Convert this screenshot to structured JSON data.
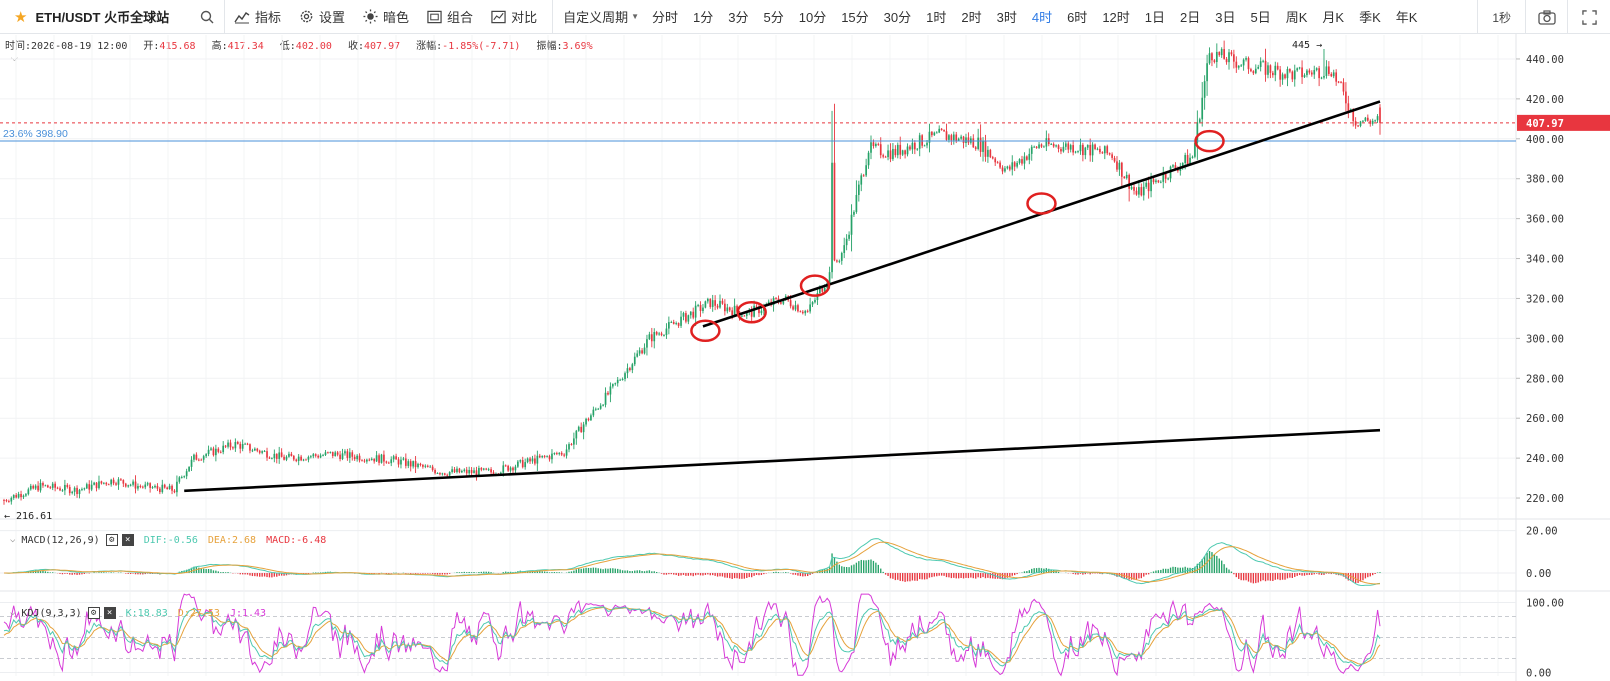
{
  "toolbar": {
    "symbol": "ETH/USDT 火币全球站",
    "tools": [
      "指标",
      "设置",
      "暗色",
      "组合",
      "对比"
    ],
    "custom_period": "自定义周期",
    "periods": [
      "分时",
      "1分",
      "3分",
      "5分",
      "10分",
      "15分",
      "30分",
      "1时",
      "2时",
      "3时",
      "4时",
      "6时",
      "12时",
      "1日",
      "2日",
      "3日",
      "5日",
      "周K",
      "月K",
      "季K",
      "年K"
    ],
    "active_period": "4时",
    "seconds": "1秒"
  },
  "ohlc": {
    "time_label": "时间:",
    "time": "2020-08-19 12:00",
    "open_label": "开:",
    "open": "415.68",
    "high_label": "高:",
    "high": "417.34",
    "low_label": "低:",
    "low": "402.00",
    "close_label": "收:",
    "close": "407.97",
    "change_label": "涨幅:",
    "change": "-1.85%(-7.71)",
    "amp_label": "振幅:",
    "amp": "3.69%"
  },
  "macd_legend": {
    "name": "MACD(12,26,9)",
    "dif": "DIF:-0.56",
    "dea": "DEA:2.68",
    "macd": "MACD:-6.48"
  },
  "kdj_legend": {
    "name": "KDJ(9,3,3)",
    "k": "K:18.83",
    "d": "D:27.53",
    "j": "J:1.43"
  },
  "colors": {
    "up": "#26a268",
    "down": "#e8363f",
    "fib_line": "#4a90d9",
    "last_price": "#e8363f",
    "trendline": "#000000",
    "circle": "#e02020",
    "dif": "#4ec9b0",
    "dea": "#e6a23c",
    "k_line": "#4ec9b0",
    "d_line": "#e6a23c",
    "j_line": "#d63ad8",
    "active": "#2f7be5"
  },
  "chart_data": [
    {
      "type": "candlestick",
      "title": "ETH/USDT 4时",
      "y_ticks": [
        "440.00",
        "420.00",
        "400.00",
        "380.00",
        "360.00",
        "340.00",
        "320.00",
        "300.00",
        "280.00",
        "260.00",
        "240.00",
        "220.00"
      ],
      "ylim": [
        210,
        452
      ],
      "last_price": 407.97,
      "last_price_label": "407.97",
      "high_marker": 445,
      "high_marker_label": "445",
      "low_marker": 216.61,
      "low_marker_label": "216.61",
      "fib_level": 398.9,
      "fib_label": "23.6% 398.90",
      "anchors": [
        [
          0,
          219
        ],
        [
          15,
          226
        ],
        [
          30,
          224
        ],
        [
          45,
          229
        ],
        [
          55,
          226
        ],
        [
          70,
          224
        ],
        [
          72,
          229
        ],
        [
          78,
          240
        ],
        [
          95,
          247
        ],
        [
          115,
          240
        ],
        [
          135,
          242
        ],
        [
          160,
          239
        ],
        [
          180,
          233
        ],
        [
          200,
          233
        ],
        [
          215,
          238
        ],
        [
          230,
          243
        ],
        [
          238,
          257
        ],
        [
          250,
          275
        ],
        [
          265,
          300
        ],
        [
          290,
          318
        ],
        [
          305,
          312
        ],
        [
          320,
          320
        ],
        [
          330,
          313
        ],
        [
          345,
          345
        ],
        [
          355,
          395
        ],
        [
          365,
          393
        ],
        [
          375,
          398
        ],
        [
          385,
          402
        ],
        [
          400,
          398
        ],
        [
          412,
          384
        ],
        [
          425,
          397
        ],
        [
          440,
          396
        ],
        [
          455,
          392
        ],
        [
          465,
          372
        ],
        [
          480,
          385
        ],
        [
          488,
          391
        ],
        [
          495,
          443
        ],
        [
          510,
          437
        ],
        [
          530,
          432
        ],
        [
          545,
          435
        ],
        [
          555,
          409
        ]
      ],
      "trendlines": [
        {
          "from_index": 287,
          "from_price": 306,
          "to_index": 565,
          "to_price": 418.7
        },
        {
          "from_index": 74,
          "from_price": 223.6,
          "to_index": 565,
          "to_price": 254
        }
      ],
      "circled_touches": [
        {
          "index": 288,
          "price": 303.8
        },
        {
          "index": 307,
          "price": 313.1
        },
        {
          "index": 333,
          "price": 326.4
        },
        {
          "index": 426,
          "price": 367.6
        },
        {
          "index": 495,
          "price": 398.8
        }
      ]
    },
    {
      "type": "line",
      "title": "MACD(12,26,9)",
      "y_ticks": [
        "20.00",
        "0.00"
      ],
      "ylim": [
        -8,
        25
      ],
      "series_names": [
        "DIF",
        "DEA",
        "MACD"
      ]
    },
    {
      "type": "line",
      "title": "KDJ(9,3,3)",
      "y_ticks": [
        "100.00",
        "0.00"
      ],
      "ylim": [
        -5,
        115
      ],
      "series_names": [
        "K",
        "D",
        "J"
      ]
    }
  ]
}
